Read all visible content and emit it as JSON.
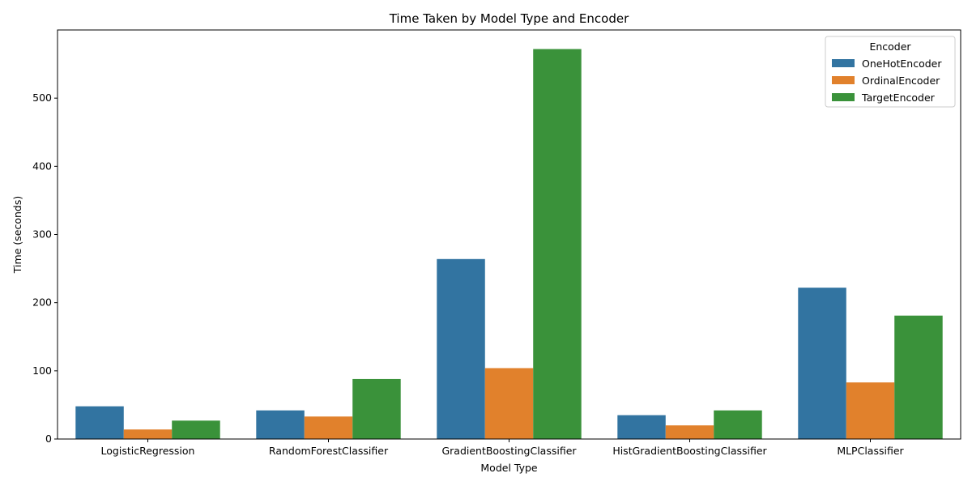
{
  "chart_data": {
    "type": "bar",
    "title": "Time Taken by Model Type and Encoder",
    "xlabel": "Model Type",
    "ylabel": "Time (seconds)",
    "categories": [
      "LogisticRegression",
      "RandomForestClassifier",
      "GradientBoostingClassifier",
      "HistGradientBoostingClassifier",
      "MLPClassifier"
    ],
    "series": [
      {
        "name": "OneHotEncoder",
        "color": "#3274a1",
        "values": [
          48,
          42,
          264,
          35,
          222
        ]
      },
      {
        "name": "OrdinalEncoder",
        "color": "#e1812c",
        "values": [
          14,
          33,
          104,
          20,
          83
        ]
      },
      {
        "name": "TargetEncoder",
        "color": "#3a923a",
        "values": [
          27,
          88,
          572,
          42,
          181
        ]
      }
    ],
    "ylim": [
      0,
      600
    ],
    "yticks": [
      0,
      100,
      200,
      300,
      400,
      500
    ],
    "legend": {
      "title": "Encoder",
      "position": "top-right"
    },
    "grid": false
  }
}
